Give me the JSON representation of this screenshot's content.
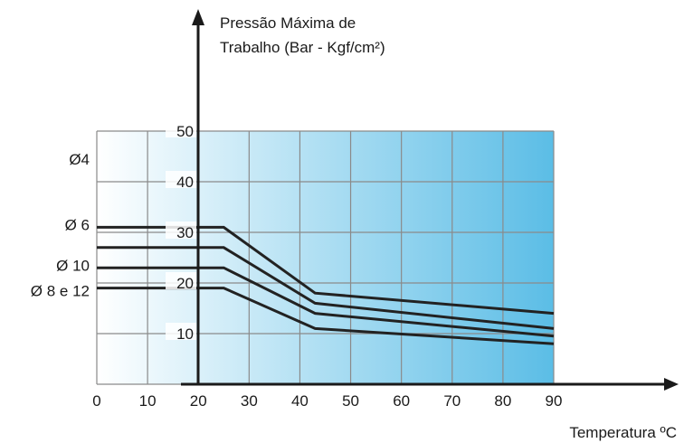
{
  "chart_data": {
    "type": "line",
    "ylabel": "Pressão Máxima de Trabalho (Bar - Kgf/cm²)",
    "ylabel_lines": [
      "Pressão Máxima de",
      "Trabalho (Bar - Kgf/cm²)"
    ],
    "xlabel": "Temperatura  ºC",
    "xlim": [
      0,
      90
    ],
    "ylim": [
      0,
      50
    ],
    "x_ticks": [
      "0",
      "10",
      "20",
      "30",
      "40",
      "50",
      "60",
      "70",
      "80",
      "90"
    ],
    "y_ticks": [
      "10",
      "20",
      "30",
      "40",
      "50"
    ],
    "grid": true,
    "background_gradient": [
      "#ffffff",
      "#5bbde6"
    ],
    "line_color": "#222222",
    "series": [
      {
        "name": "Ø 6",
        "x": [
          0,
          25,
          43,
          90
        ],
        "y": [
          31,
          31,
          18,
          14
        ]
      },
      {
        "name": "Ø 4",
        "x": [
          0,
          25,
          43,
          90
        ],
        "y": [
          27,
          27,
          16,
          11
        ]
      },
      {
        "name": "Ø 10",
        "x": [
          0,
          25,
          43,
          90
        ],
        "y": [
          23,
          23,
          14,
          9.5
        ]
      },
      {
        "name": "Ø 8 e 12",
        "x": [
          0,
          25,
          43,
          90
        ],
        "y": [
          19,
          19,
          11,
          8
        ]
      }
    ],
    "series_labels": [
      {
        "text": "Ø4",
        "y": 44.5
      },
      {
        "text": "Ø 6",
        "y": 31.5
      },
      {
        "text": "Ø 10",
        "y": 23.5
      },
      {
        "text": "Ø 8 e 12",
        "y": 18.5
      }
    ]
  }
}
